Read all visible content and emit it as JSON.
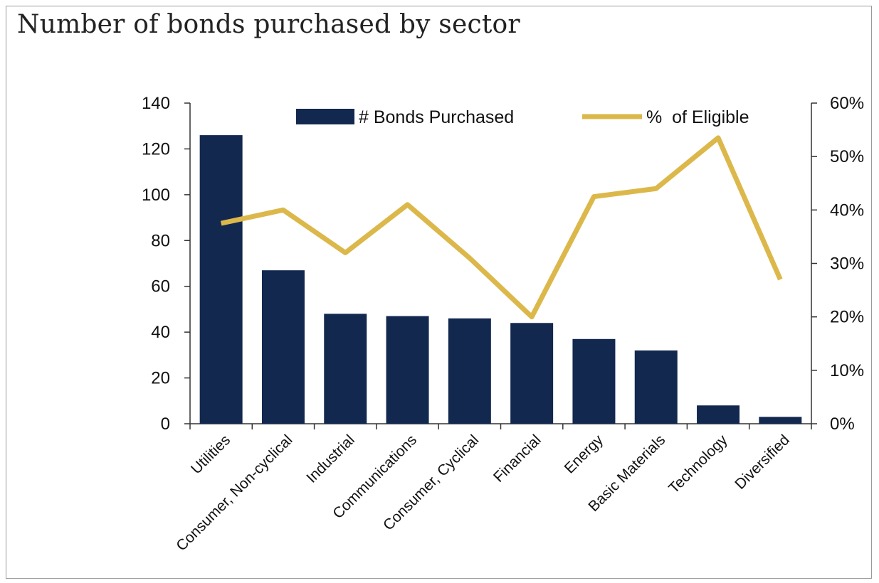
{
  "page": {
    "title": "Number of bonds purchased by sector"
  },
  "colors": {
    "bar": "#13284f",
    "line": "#dcb84b",
    "axis": "#333333"
  },
  "chart_data": {
    "type": "bar",
    "title": "Number of bonds purchased by sector",
    "categories": [
      "Utilities",
      "Consumer, Non-cyclical",
      "Industrial",
      "Communications",
      "Consumer, Cyclical",
      "Financial",
      "Energy",
      "Basic Materials",
      "Technology",
      "Diversified"
    ],
    "series": [
      {
        "name": "# Bonds Purchased",
        "type": "bar",
        "axis": "left",
        "values": [
          126,
          67,
          48,
          47,
          46,
          44,
          37,
          32,
          8,
          3
        ]
      },
      {
        "name": "%  of Eligible",
        "type": "line",
        "axis": "right",
        "values": [
          0.375,
          0.4,
          0.32,
          0.41,
          0.31,
          0.2,
          0.425,
          0.44,
          0.535,
          0.27
        ]
      }
    ],
    "y_left": {
      "ylim": [
        0,
        140
      ],
      "ticks": [
        0,
        20,
        40,
        60,
        80,
        100,
        120,
        140
      ],
      "tick_labels": [
        "0",
        "20",
        "40",
        "60",
        "80",
        "100",
        "120",
        "140"
      ]
    },
    "y_right": {
      "ylim": [
        0,
        0.6
      ],
      "ticks": [
        0,
        0.1,
        0.2,
        0.3,
        0.4,
        0.5,
        0.6
      ],
      "tick_labels": [
        "0%",
        "10%",
        "20%",
        "30%",
        "40%",
        "50%",
        "60%"
      ]
    },
    "legend": {
      "position": "top",
      "entries": [
        "# Bonds Purchased",
        "%  of Eligible"
      ]
    },
    "grid": false
  }
}
